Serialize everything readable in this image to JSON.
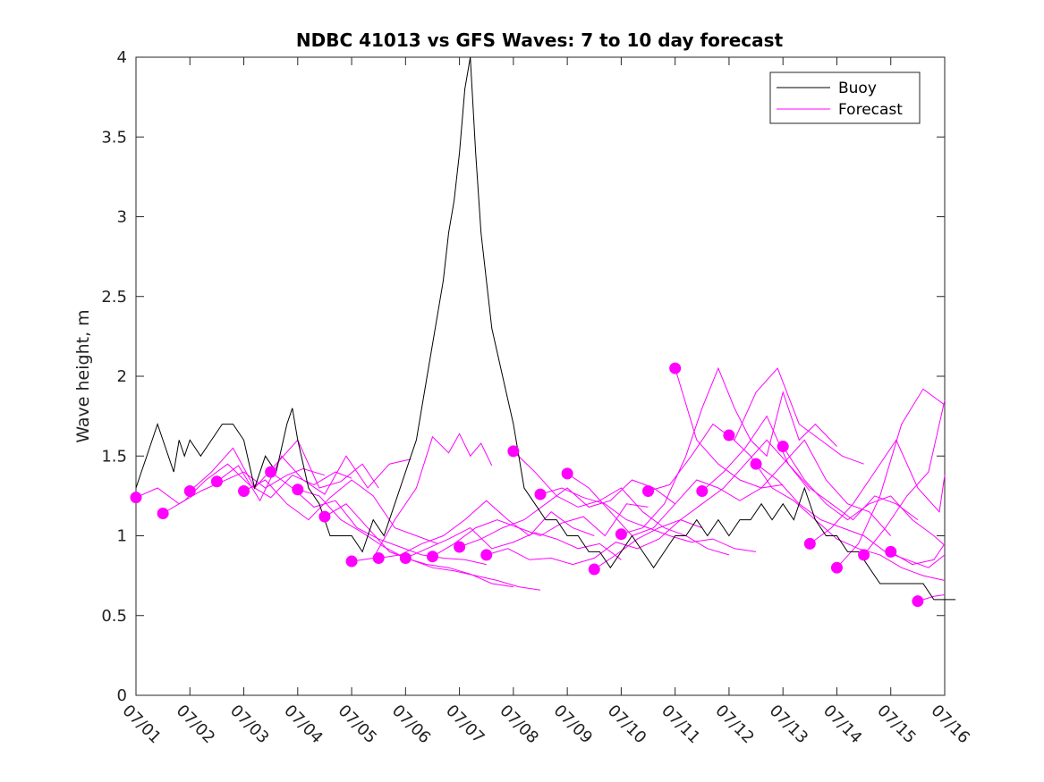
{
  "chart_data": {
    "type": "line",
    "title": "NDBC 41013 vs GFS Waves: 7 to 10 day forecast",
    "xlabel": "",
    "ylabel": "Wave height, m",
    "xlim": [
      0,
      15
    ],
    "ylim": [
      0,
      4
    ],
    "x_ticks": [
      0,
      1,
      2,
      3,
      4,
      5,
      6,
      7,
      8,
      9,
      10,
      11,
      12,
      13,
      14,
      15
    ],
    "x_tick_labels": [
      "07/01",
      "07/02",
      "07/03",
      "07/04",
      "07/05",
      "07/06",
      "07/07",
      "07/08",
      "07/09",
      "07/10",
      "07/11",
      "07/12",
      "07/13",
      "07/14",
      "07/15",
      "07/16"
    ],
    "y_ticks": [
      0,
      0.5,
      1,
      1.5,
      2,
      2.5,
      3,
      3.5,
      4
    ],
    "y_tick_labels": [
      "0",
      "0.5",
      "1",
      "1.5",
      "2",
      "2.5",
      "3",
      "3.5",
      "4"
    ],
    "grid": false,
    "legend_position": "top-right",
    "legend": [
      {
        "label": "Buoy",
        "color": "#000000"
      },
      {
        "label": "Forecast",
        "color": "#ff00ff"
      }
    ],
    "colors": {
      "buoy": "#000000",
      "forecast": "#ff00ff"
    },
    "buoy": {
      "name": "Buoy",
      "x": [
        0,
        0.1,
        0.2,
        0.3,
        0.4,
        0.5,
        0.6,
        0.7,
        0.8,
        0.9,
        1.0,
        1.2,
        1.4,
        1.6,
        1.8,
        2.0,
        2.2,
        2.4,
        2.6,
        2.8,
        2.9,
        3.0,
        3.2,
        3.4,
        3.6,
        3.8,
        4.0,
        4.2,
        4.4,
        4.6,
        4.8,
        5.0,
        5.2,
        5.4,
        5.6,
        5.7,
        5.8,
        5.9,
        6.0,
        6.1,
        6.2,
        6.3,
        6.4,
        6.5,
        6.6,
        6.8,
        7.0,
        7.2,
        7.4,
        7.6,
        7.8,
        8.0,
        8.2,
        8.4,
        8.6,
        8.8,
        9.0,
        9.2,
        9.4,
        9.6,
        9.8,
        10.0,
        10.2,
        10.4,
        10.6,
        10.8,
        11.0,
        11.2,
        11.4,
        11.6,
        11.8,
        12.0,
        12.2,
        12.4,
        12.6,
        12.8,
        13.0,
        13.2,
        13.4,
        13.6,
        13.8,
        14.0,
        14.2,
        14.4,
        14.6,
        14.8,
        15.0,
        15.2
      ],
      "y": [
        1.3,
        1.4,
        1.5,
        1.6,
        1.7,
        1.6,
        1.5,
        1.4,
        1.6,
        1.5,
        1.6,
        1.5,
        1.6,
        1.7,
        1.7,
        1.6,
        1.3,
        1.5,
        1.4,
        1.7,
        1.8,
        1.6,
        1.3,
        1.2,
        1.0,
        1.0,
        1.0,
        0.9,
        1.1,
        1.0,
        1.2,
        1.4,
        1.6,
        2.0,
        2.4,
        2.6,
        2.9,
        3.1,
        3.4,
        3.8,
        4.0,
        3.4,
        2.9,
        2.6,
        2.3,
        2.0,
        1.7,
        1.3,
        1.2,
        1.1,
        1.1,
        1.0,
        1.0,
        0.9,
        0.9,
        0.8,
        0.9,
        1.0,
        0.9,
        0.8,
        0.9,
        1.0,
        1.0,
        1.1,
        1.0,
        1.1,
        1.0,
        1.1,
        1.1,
        1.2,
        1.1,
        1.2,
        1.1,
        1.3,
        1.1,
        1.0,
        1.0,
        0.9,
        0.9,
        0.8,
        0.7,
        0.7,
        0.7,
        0.7,
        0.7,
        0.6,
        0.6,
        0.6
      ]
    },
    "forecast_series": [
      {
        "x": [
          0.0,
          0.4,
          0.8,
          1.2,
          1.6,
          2.0,
          2.4,
          2.8,
          3.1,
          3.5
        ],
        "y": [
          1.24,
          1.3,
          1.2,
          1.28,
          1.34,
          1.4,
          1.3,
          1.38,
          1.42,
          1.38
        ]
      },
      {
        "x": [
          0.5,
          0.9,
          1.3,
          1.7,
          2.1,
          2.5,
          2.9,
          3.3,
          3.7,
          4.0
        ],
        "y": [
          1.14,
          1.22,
          1.35,
          1.45,
          1.32,
          1.24,
          1.38,
          1.32,
          1.4,
          1.36
        ]
      },
      {
        "x": [
          1.0,
          1.4,
          1.8,
          2.2,
          2.6,
          3.0,
          3.4,
          3.8,
          4.2,
          4.5
        ],
        "y": [
          1.28,
          1.4,
          1.55,
          1.3,
          1.45,
          1.6,
          1.3,
          1.34,
          1.45,
          1.3
        ]
      },
      {
        "x": [
          1.5,
          1.9,
          2.3,
          2.7,
          3.1,
          3.5,
          3.9,
          4.3,
          4.7,
          5.1
        ],
        "y": [
          1.34,
          1.44,
          1.22,
          1.5,
          1.35,
          1.26,
          1.5,
          1.3,
          1.45,
          1.48
        ]
      },
      {
        "x": [
          2.0,
          2.4,
          2.8,
          3.2,
          3.6,
          4.0,
          4.4,
          4.8,
          5.2,
          5.6
        ],
        "y": [
          1.28,
          1.35,
          1.2,
          1.1,
          1.24,
          1.35,
          1.25,
          1.05,
          1.0,
          0.95
        ]
      },
      {
        "x": [
          2.5,
          2.9,
          3.3,
          3.7,
          4.1,
          4.5,
          4.9,
          5.3,
          5.7,
          6.1,
          6.5
        ],
        "y": [
          1.4,
          1.3,
          1.18,
          1.22,
          1.05,
          0.98,
          0.93,
          0.88,
          0.86,
          0.85,
          0.82
        ]
      },
      {
        "x": [
          3.0,
          3.4,
          3.8,
          4.2,
          4.6,
          5.0,
          5.4,
          5.8,
          6.2,
          6.6,
          7.0
        ],
        "y": [
          1.29,
          1.25,
          1.1,
          1.02,
          0.93,
          0.86,
          0.82,
          0.8,
          0.76,
          0.7,
          0.68
        ]
      },
      {
        "x": [
          3.5,
          3.9,
          4.3,
          4.7,
          5.1,
          5.5,
          5.9,
          6.3,
          6.7,
          7.1,
          7.5
        ],
        "y": [
          1.12,
          1.2,
          1.05,
          0.9,
          0.85,
          0.8,
          0.78,
          0.75,
          0.72,
          0.68,
          0.66
        ]
      },
      {
        "x": [
          4.0,
          4.4,
          4.8,
          5.2,
          5.5,
          5.8,
          6.0,
          6.2,
          6.4,
          6.6
        ],
        "y": [
          0.84,
          0.86,
          1.1,
          1.3,
          1.62,
          1.52,
          1.64,
          1.5,
          1.58,
          1.44
        ]
      },
      {
        "x": [
          4.5,
          4.9,
          5.3,
          5.7,
          6.1,
          6.5,
          6.9,
          7.3,
          7.7,
          8.1,
          8.5
        ],
        "y": [
          0.86,
          0.88,
          0.95,
          1.0,
          1.1,
          1.22,
          1.1,
          1.0,
          1.15,
          1.05,
          1.0
        ]
      },
      {
        "x": [
          5.0,
          5.4,
          5.8,
          6.2,
          6.6,
          7.0,
          7.4,
          7.8,
          8.2,
          8.6,
          9.0
        ],
        "y": [
          0.86,
          0.92,
          0.98,
          1.05,
          0.92,
          0.96,
          1.02,
          0.98,
          0.92,
          0.95,
          0.85
        ]
      },
      {
        "x": [
          5.5,
          5.9,
          6.3,
          6.7,
          7.1,
          7.5,
          7.9,
          8.3,
          8.7,
          9.1,
          9.5
        ],
        "y": [
          0.87,
          0.95,
          1.05,
          1.1,
          1.05,
          1.0,
          1.08,
          1.12,
          1.0,
          1.2,
          1.18
        ]
      },
      {
        "x": [
          6.0,
          6.4,
          6.8,
          7.2,
          7.6,
          8.0,
          8.4,
          8.8,
          9.2,
          9.6,
          10.0
        ],
        "y": [
          0.93,
          0.98,
          1.05,
          1.1,
          1.2,
          1.3,
          1.18,
          1.22,
          1.35,
          1.3,
          1.2
        ]
      },
      {
        "x": [
          6.5,
          6.9,
          7.3,
          7.7,
          8.1,
          8.5,
          8.9,
          9.3,
          9.7,
          10.1,
          10.5
        ],
        "y": [
          0.88,
          0.92,
          0.85,
          0.86,
          0.82,
          0.86,
          0.96,
          0.92,
          0.98,
          1.1,
          1.05
        ]
      },
      {
        "x": [
          7.0,
          7.4,
          7.8,
          8.2,
          8.6,
          9.0,
          9.4,
          9.8,
          10.2,
          10.6,
          11.0
        ],
        "y": [
          1.53,
          1.4,
          1.25,
          1.18,
          1.22,
          1.3,
          1.15,
          1.05,
          1.0,
          0.92,
          0.88
        ]
      },
      {
        "x": [
          7.5,
          7.9,
          8.3,
          8.7,
          9.1,
          9.5,
          9.9,
          10.3,
          10.7,
          11.1,
          11.5
        ],
        "y": [
          1.26,
          1.3,
          1.24,
          1.2,
          1.1,
          1.05,
          1.0,
          0.96,
          0.98,
          0.92,
          0.9
        ]
      },
      {
        "x": [
          8.0,
          8.4,
          8.8,
          9.2,
          9.6,
          10.0,
          10.4,
          10.8,
          11.2,
          11.6,
          12.0
        ],
        "y": [
          1.39,
          1.3,
          1.15,
          1.0,
          1.05,
          1.2,
          1.35,
          1.3,
          1.22,
          1.3,
          1.32
        ]
      },
      {
        "x": [
          8.5,
          8.9,
          9.3,
          9.7,
          10.1,
          10.5,
          10.9,
          11.3,
          11.7,
          12.1,
          12.5
        ],
        "y": [
          0.79,
          0.88,
          0.98,
          1.05,
          1.1,
          1.2,
          1.3,
          1.45,
          1.6,
          1.45,
          1.28
        ]
      },
      {
        "x": [
          9.0,
          9.4,
          9.8,
          10.2,
          10.5,
          10.8,
          11.1,
          11.4,
          11.7,
          12.0,
          12.3,
          12.6,
          13.0
        ],
        "y": [
          1.01,
          1.05,
          1.2,
          1.5,
          1.8,
          2.05,
          1.8,
          1.6,
          1.5,
          1.9,
          1.6,
          1.7,
          1.56
        ]
      },
      {
        "x": [
          9.5,
          9.9,
          10.3,
          10.7,
          11.1,
          11.5,
          11.9,
          12.3,
          12.7,
          13.1,
          13.5
        ],
        "y": [
          1.28,
          1.32,
          1.5,
          1.7,
          1.6,
          1.9,
          2.05,
          1.7,
          1.6,
          1.5,
          1.45
        ]
      },
      {
        "x": [
          10.0,
          10.4,
          10.8,
          11.2,
          11.6,
          12.0,
          12.4,
          12.8,
          13.2,
          13.6,
          14.0
        ],
        "y": [
          2.05,
          1.6,
          1.45,
          1.35,
          1.3,
          1.45,
          1.6,
          1.35,
          1.2,
          1.15,
          1.0
        ]
      },
      {
        "x": [
          10.5,
          10.9,
          11.3,
          11.7,
          12.1,
          12.5,
          12.9,
          13.3,
          13.7,
          14.1,
          14.5
        ],
        "y": [
          1.28,
          1.4,
          1.55,
          1.75,
          1.45,
          1.3,
          1.2,
          1.1,
          1.25,
          1.2,
          1.1
        ]
      },
      {
        "x": [
          11.0,
          11.4,
          11.8,
          12.2,
          12.6,
          13.0,
          13.4,
          13.8,
          14.2,
          14.6,
          15.0
        ],
        "y": [
          1.63,
          1.5,
          1.3,
          1.22,
          1.1,
          0.98,
          0.92,
          0.88,
          0.8,
          0.75,
          0.72
        ]
      },
      {
        "x": [
          11.5,
          11.9,
          12.3,
          12.7,
          13.1,
          13.5,
          13.9,
          14.3,
          14.7,
          15.0
        ],
        "y": [
          1.45,
          1.35,
          1.2,
          1.1,
          1.05,
          1.0,
          0.9,
          0.85,
          0.8,
          0.88
        ]
      },
      {
        "x": [
          12.0,
          12.4,
          12.8,
          13.2,
          13.6,
          14.0,
          14.4,
          14.8,
          15.0
        ],
        "y": [
          1.56,
          1.35,
          1.2,
          1.1,
          1.2,
          1.25,
          1.1,
          1.0,
          0.94
        ]
      },
      {
        "x": [
          12.5,
          12.9,
          13.3,
          13.7,
          14.1,
          14.5,
          14.9,
          15.0
        ],
        "y": [
          0.95,
          1.05,
          1.2,
          1.4,
          1.6,
          1.3,
          1.15,
          1.38
        ]
      },
      {
        "x": [
          13.0,
          13.4,
          13.8,
          14.2,
          14.6,
          15.0
        ],
        "y": [
          0.8,
          0.95,
          1.25,
          1.7,
          1.92,
          1.82
        ]
      },
      {
        "x": [
          13.5,
          13.9,
          14.3,
          14.7,
          15.0
        ],
        "y": [
          0.88,
          1.05,
          1.25,
          1.4,
          1.85
        ]
      },
      {
        "x": [
          14.0,
          14.4,
          14.8,
          15.0
        ],
        "y": [
          0.9,
          0.82,
          0.85,
          0.95
        ]
      },
      {
        "x": [
          14.5,
          14.8,
          15.0
        ],
        "y": [
          0.59,
          0.62,
          0.63
        ]
      }
    ],
    "forecast_markers": {
      "x": [
        0.0,
        0.5,
        1.0,
        1.5,
        2.0,
        2.5,
        3.0,
        3.5,
        4.0,
        4.5,
        5.0,
        5.5,
        6.0,
        6.5,
        7.0,
        7.5,
        8.0,
        8.5,
        9.0,
        9.5,
        10.0,
        10.5,
        11.0,
        11.5,
        12.0,
        12.5,
        13.0,
        13.5,
        14.0,
        14.5
      ],
      "y": [
        1.24,
        1.14,
        1.28,
        1.34,
        1.28,
        1.4,
        1.29,
        1.12,
        0.84,
        0.86,
        0.86,
        0.87,
        0.93,
        0.88,
        1.53,
        1.26,
        1.39,
        0.79,
        1.01,
        1.28,
        2.05,
        1.28,
        1.63,
        1.45,
        1.56,
        0.95,
        0.8,
        0.88,
        0.9,
        0.59
      ]
    }
  }
}
